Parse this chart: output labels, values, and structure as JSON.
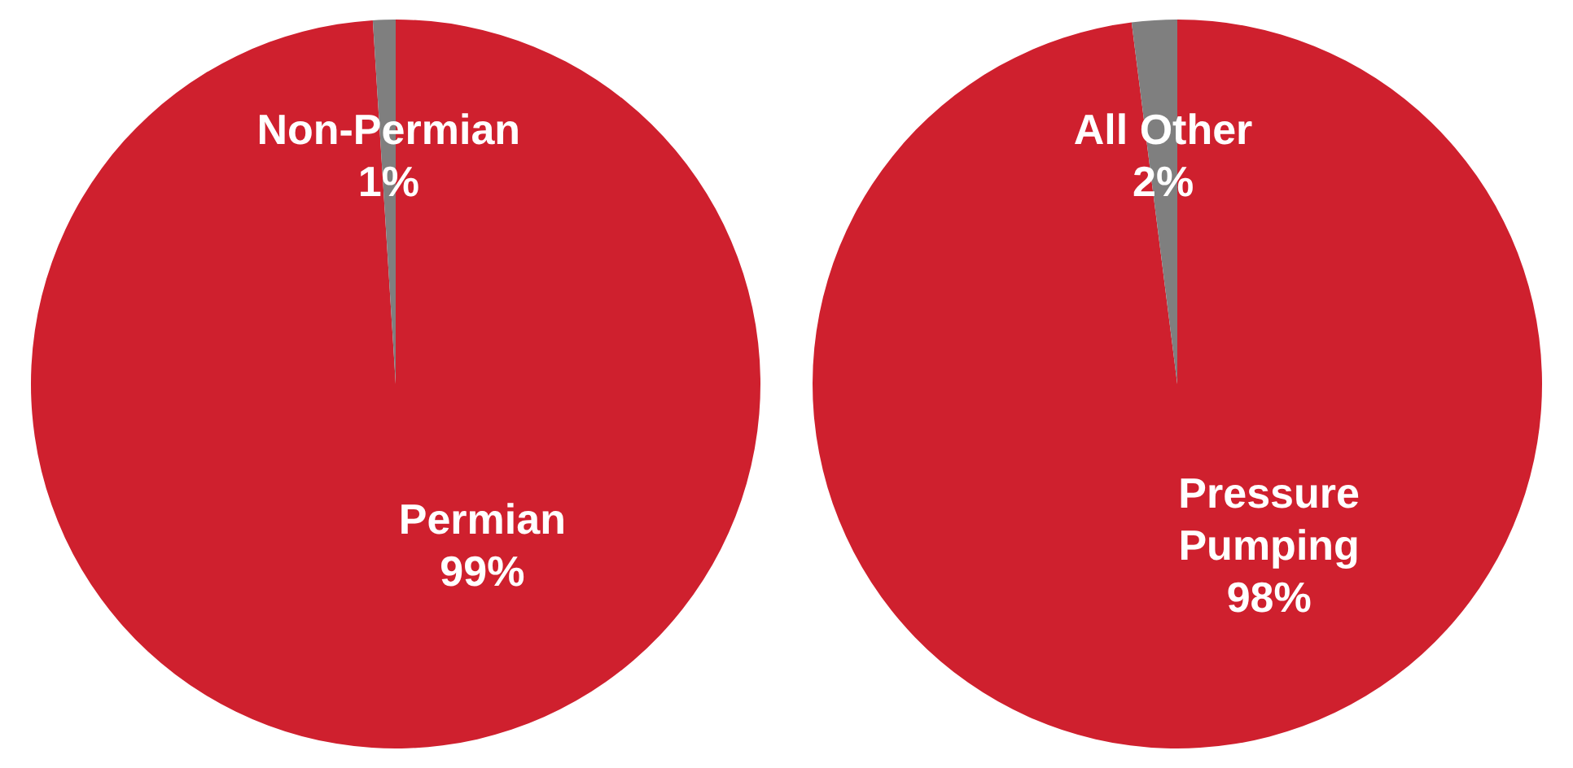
{
  "chart_data": [
    {
      "type": "pie",
      "categories": [
        "Permian",
        "Non-Permian"
      ],
      "values": [
        99,
        1
      ],
      "colors": [
        "#cf202e",
        "#7f7f7f"
      ],
      "value_labels": [
        "99%",
        "1%"
      ],
      "legend": false
    },
    {
      "type": "pie",
      "categories": [
        "Pressure Pumping",
        "All Other"
      ],
      "values": [
        98,
        2
      ],
      "colors": [
        "#cf202e",
        "#7f7f7f"
      ],
      "value_labels": [
        "98%",
        "2%"
      ],
      "legend": false
    }
  ]
}
